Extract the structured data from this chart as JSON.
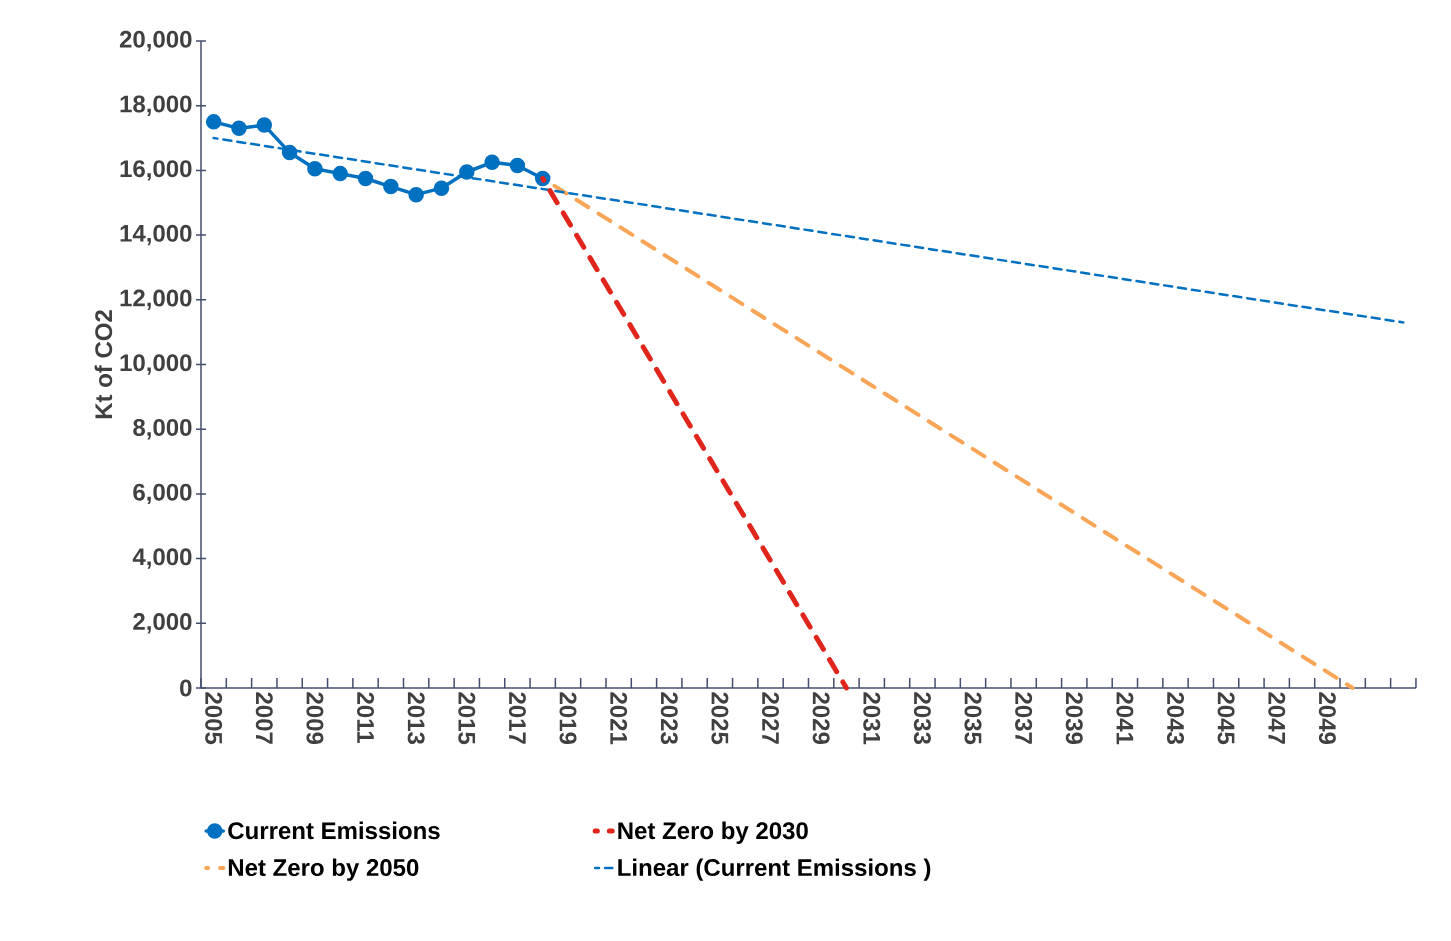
{
  "chart_data": {
    "type": "line",
    "ylabel": "Kt of CO2",
    "categories": [
      "2005",
      null,
      "2007",
      null,
      "2009",
      null,
      "2011",
      null,
      "2013",
      null,
      "2015",
      null,
      "2017",
      null,
      "2019",
      null,
      "2021",
      null,
      "2023",
      null,
      "2025",
      null,
      "2027",
      null,
      "2029",
      null,
      "2031",
      null,
      "2033",
      null,
      "2035",
      null,
      "2037",
      null,
      "2039",
      null,
      "2041",
      null,
      "2043",
      null,
      "2045",
      null,
      "2047",
      null,
      "2049",
      null,
      null,
      null
    ],
    "series": [
      {
        "name": "Current Emissions",
        "color": "#0070c0",
        "marker": "circle",
        "line_style": "solid",
        "values": [
          17500,
          17300,
          17400,
          16550,
          16050,
          15900,
          15750,
          15500,
          15250,
          15450,
          15950,
          16250,
          16150,
          15750,
          null,
          null,
          null,
          null,
          null,
          null,
          null,
          null,
          null,
          null,
          null,
          null,
          null,
          null,
          null,
          null,
          null,
          null,
          null,
          null,
          null,
          null,
          null,
          null,
          null,
          null,
          null,
          null,
          null,
          null,
          null,
          null,
          null,
          null
        ]
      },
      {
        "name": "Net Zero by 2030",
        "color": "#e0261c",
        "marker": "none",
        "line_style": "dashed",
        "values": [
          null,
          null,
          null,
          null,
          null,
          null,
          null,
          null,
          null,
          null,
          null,
          null,
          null,
          15750,
          null,
          null,
          null,
          null,
          null,
          null,
          null,
          null,
          null,
          null,
          null,
          0,
          null,
          null,
          null,
          null,
          null,
          null,
          null,
          null,
          null,
          null,
          null,
          null,
          null,
          null,
          null,
          null,
          null,
          null,
          null,
          null,
          null,
          null
        ]
      },
      {
        "name": "Net Zero by 2050",
        "color": "#f9a557",
        "marker": "none",
        "line_style": "dashed",
        "values": [
          null,
          null,
          null,
          null,
          null,
          null,
          null,
          null,
          null,
          null,
          null,
          null,
          null,
          15750,
          null,
          null,
          null,
          null,
          null,
          null,
          null,
          null,
          null,
          null,
          null,
          null,
          null,
          null,
          null,
          null,
          null,
          null,
          null,
          null,
          null,
          null,
          null,
          null,
          null,
          null,
          null,
          null,
          null,
          null,
          null,
          0,
          null,
          null
        ]
      },
      {
        "name": "Linear (Current Emissions )",
        "color": "#0070c0",
        "marker": "none",
        "line_style": "dotted",
        "values": [
          17000,
          null,
          null,
          null,
          null,
          null,
          null,
          null,
          null,
          null,
          null,
          null,
          null,
          null,
          null,
          null,
          null,
          null,
          null,
          null,
          null,
          null,
          null,
          null,
          null,
          null,
          null,
          null,
          null,
          null,
          null,
          null,
          null,
          null,
          null,
          null,
          null,
          null,
          null,
          null,
          null,
          null,
          null,
          null,
          null,
          null,
          null,
          11300
        ]
      }
    ],
    "ylim": [
      0,
      20000
    ],
    "yticks": [
      {
        "value": 0,
        "label": "0"
      },
      {
        "value": 2000,
        "label": "2,000"
      },
      {
        "value": 4000,
        "label": "4,000"
      },
      {
        "value": 6000,
        "label": "6,000"
      },
      {
        "value": 8000,
        "label": "8,000"
      },
      {
        "value": 10000,
        "label": "10,000"
      },
      {
        "value": 12000,
        "label": "12,000"
      },
      {
        "value": 14000,
        "label": "14,000"
      },
      {
        "value": 16000,
        "label": "16,000"
      },
      {
        "value": 18000,
        "label": "18,000"
      },
      {
        "value": 20000,
        "label": "20,000"
      }
    ],
    "grid": false,
    "legend": "bottom"
  }
}
